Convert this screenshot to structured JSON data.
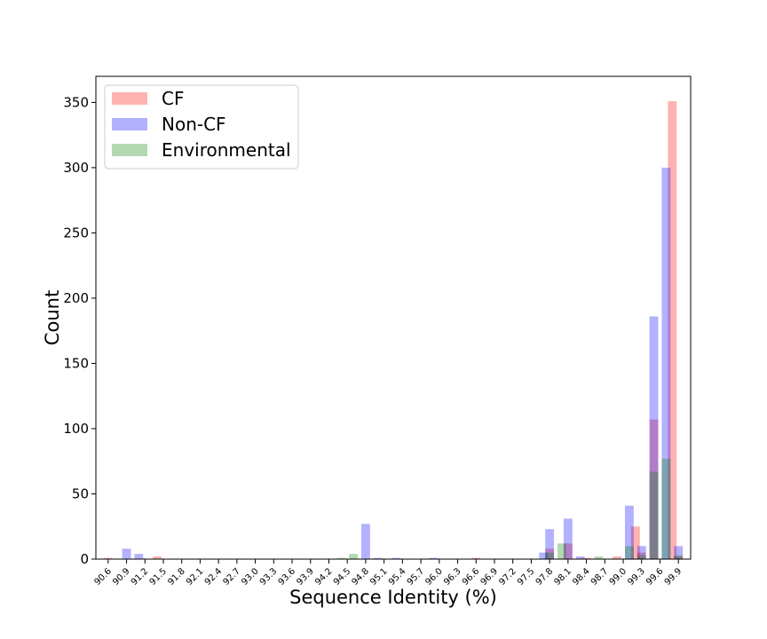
{
  "chart_data": {
    "type": "bar",
    "title": "",
    "xlabel": "Sequence Identity (%)",
    "ylabel": "Count",
    "ylim": [
      0,
      370
    ],
    "yticks": [
      0,
      50,
      100,
      150,
      200,
      250,
      300,
      350
    ],
    "xlim": [
      90.4,
      100.1
    ],
    "xticks": [
      "90.6",
      "90.9",
      "91.2",
      "91.5",
      "91.8",
      "92.1",
      "92.4",
      "92.7",
      "93.0",
      "93.3",
      "93.6",
      "93.9",
      "94.2",
      "94.5",
      "94.8",
      "95.1",
      "95.4",
      "95.7",
      "96.0",
      "96.3",
      "96.6",
      "96.9",
      "97.2",
      "97.5",
      "97.8",
      "98.1",
      "98.4",
      "98.7",
      "99.0",
      "99.3",
      "99.6",
      "99.9"
    ],
    "legend_position": "top-left",
    "grid": false,
    "series": [
      {
        "name": "CF",
        "color": "#ff0000",
        "alpha": 0.3,
        "bars": [
          {
            "x": 90.6,
            "value": 1
          },
          {
            "x": 91.4,
            "value": 2
          },
          {
            "x": 96.6,
            "value": 1
          },
          {
            "x": 97.8,
            "value": 8
          },
          {
            "x": 98.1,
            "value": 12
          },
          {
            "x": 98.4,
            "value": 1
          },
          {
            "x": 98.9,
            "value": 2
          },
          {
            "x": 99.2,
            "value": 25
          },
          {
            "x": 99.3,
            "value": 5
          },
          {
            "x": 99.5,
            "value": 107
          },
          {
            "x": 99.8,
            "value": 351
          },
          {
            "x": 99.9,
            "value": 2
          }
        ]
      },
      {
        "name": "Non-CF",
        "color": "#0000ff",
        "alpha": 0.3,
        "bars": [
          {
            "x": 90.9,
            "value": 8
          },
          {
            "x": 91.1,
            "value": 4
          },
          {
            "x": 94.8,
            "value": 27
          },
          {
            "x": 95.0,
            "value": 1
          },
          {
            "x": 95.3,
            "value": 1
          },
          {
            "x": 95.9,
            "value": 1
          },
          {
            "x": 97.7,
            "value": 5
          },
          {
            "x": 97.8,
            "value": 23
          },
          {
            "x": 98.1,
            "value": 31
          },
          {
            "x": 98.3,
            "value": 2
          },
          {
            "x": 99.1,
            "value": 41
          },
          {
            "x": 99.3,
            "value": 10
          },
          {
            "x": 99.5,
            "value": 186
          },
          {
            "x": 99.7,
            "value": 300
          },
          {
            "x": 99.9,
            "value": 10
          }
        ]
      },
      {
        "name": "Environmental",
        "color": "#008000",
        "alpha": 0.3,
        "bars": [
          {
            "x": 94.4,
            "value": 1
          },
          {
            "x": 94.6,
            "value": 4
          },
          {
            "x": 97.8,
            "value": 5
          },
          {
            "x": 98.0,
            "value": 12
          },
          {
            "x": 98.6,
            "value": 2
          },
          {
            "x": 99.1,
            "value": 10
          },
          {
            "x": 99.3,
            "value": 3
          },
          {
            "x": 99.5,
            "value": 67
          },
          {
            "x": 99.7,
            "value": 77
          },
          {
            "x": 99.9,
            "value": 3
          }
        ]
      }
    ]
  }
}
